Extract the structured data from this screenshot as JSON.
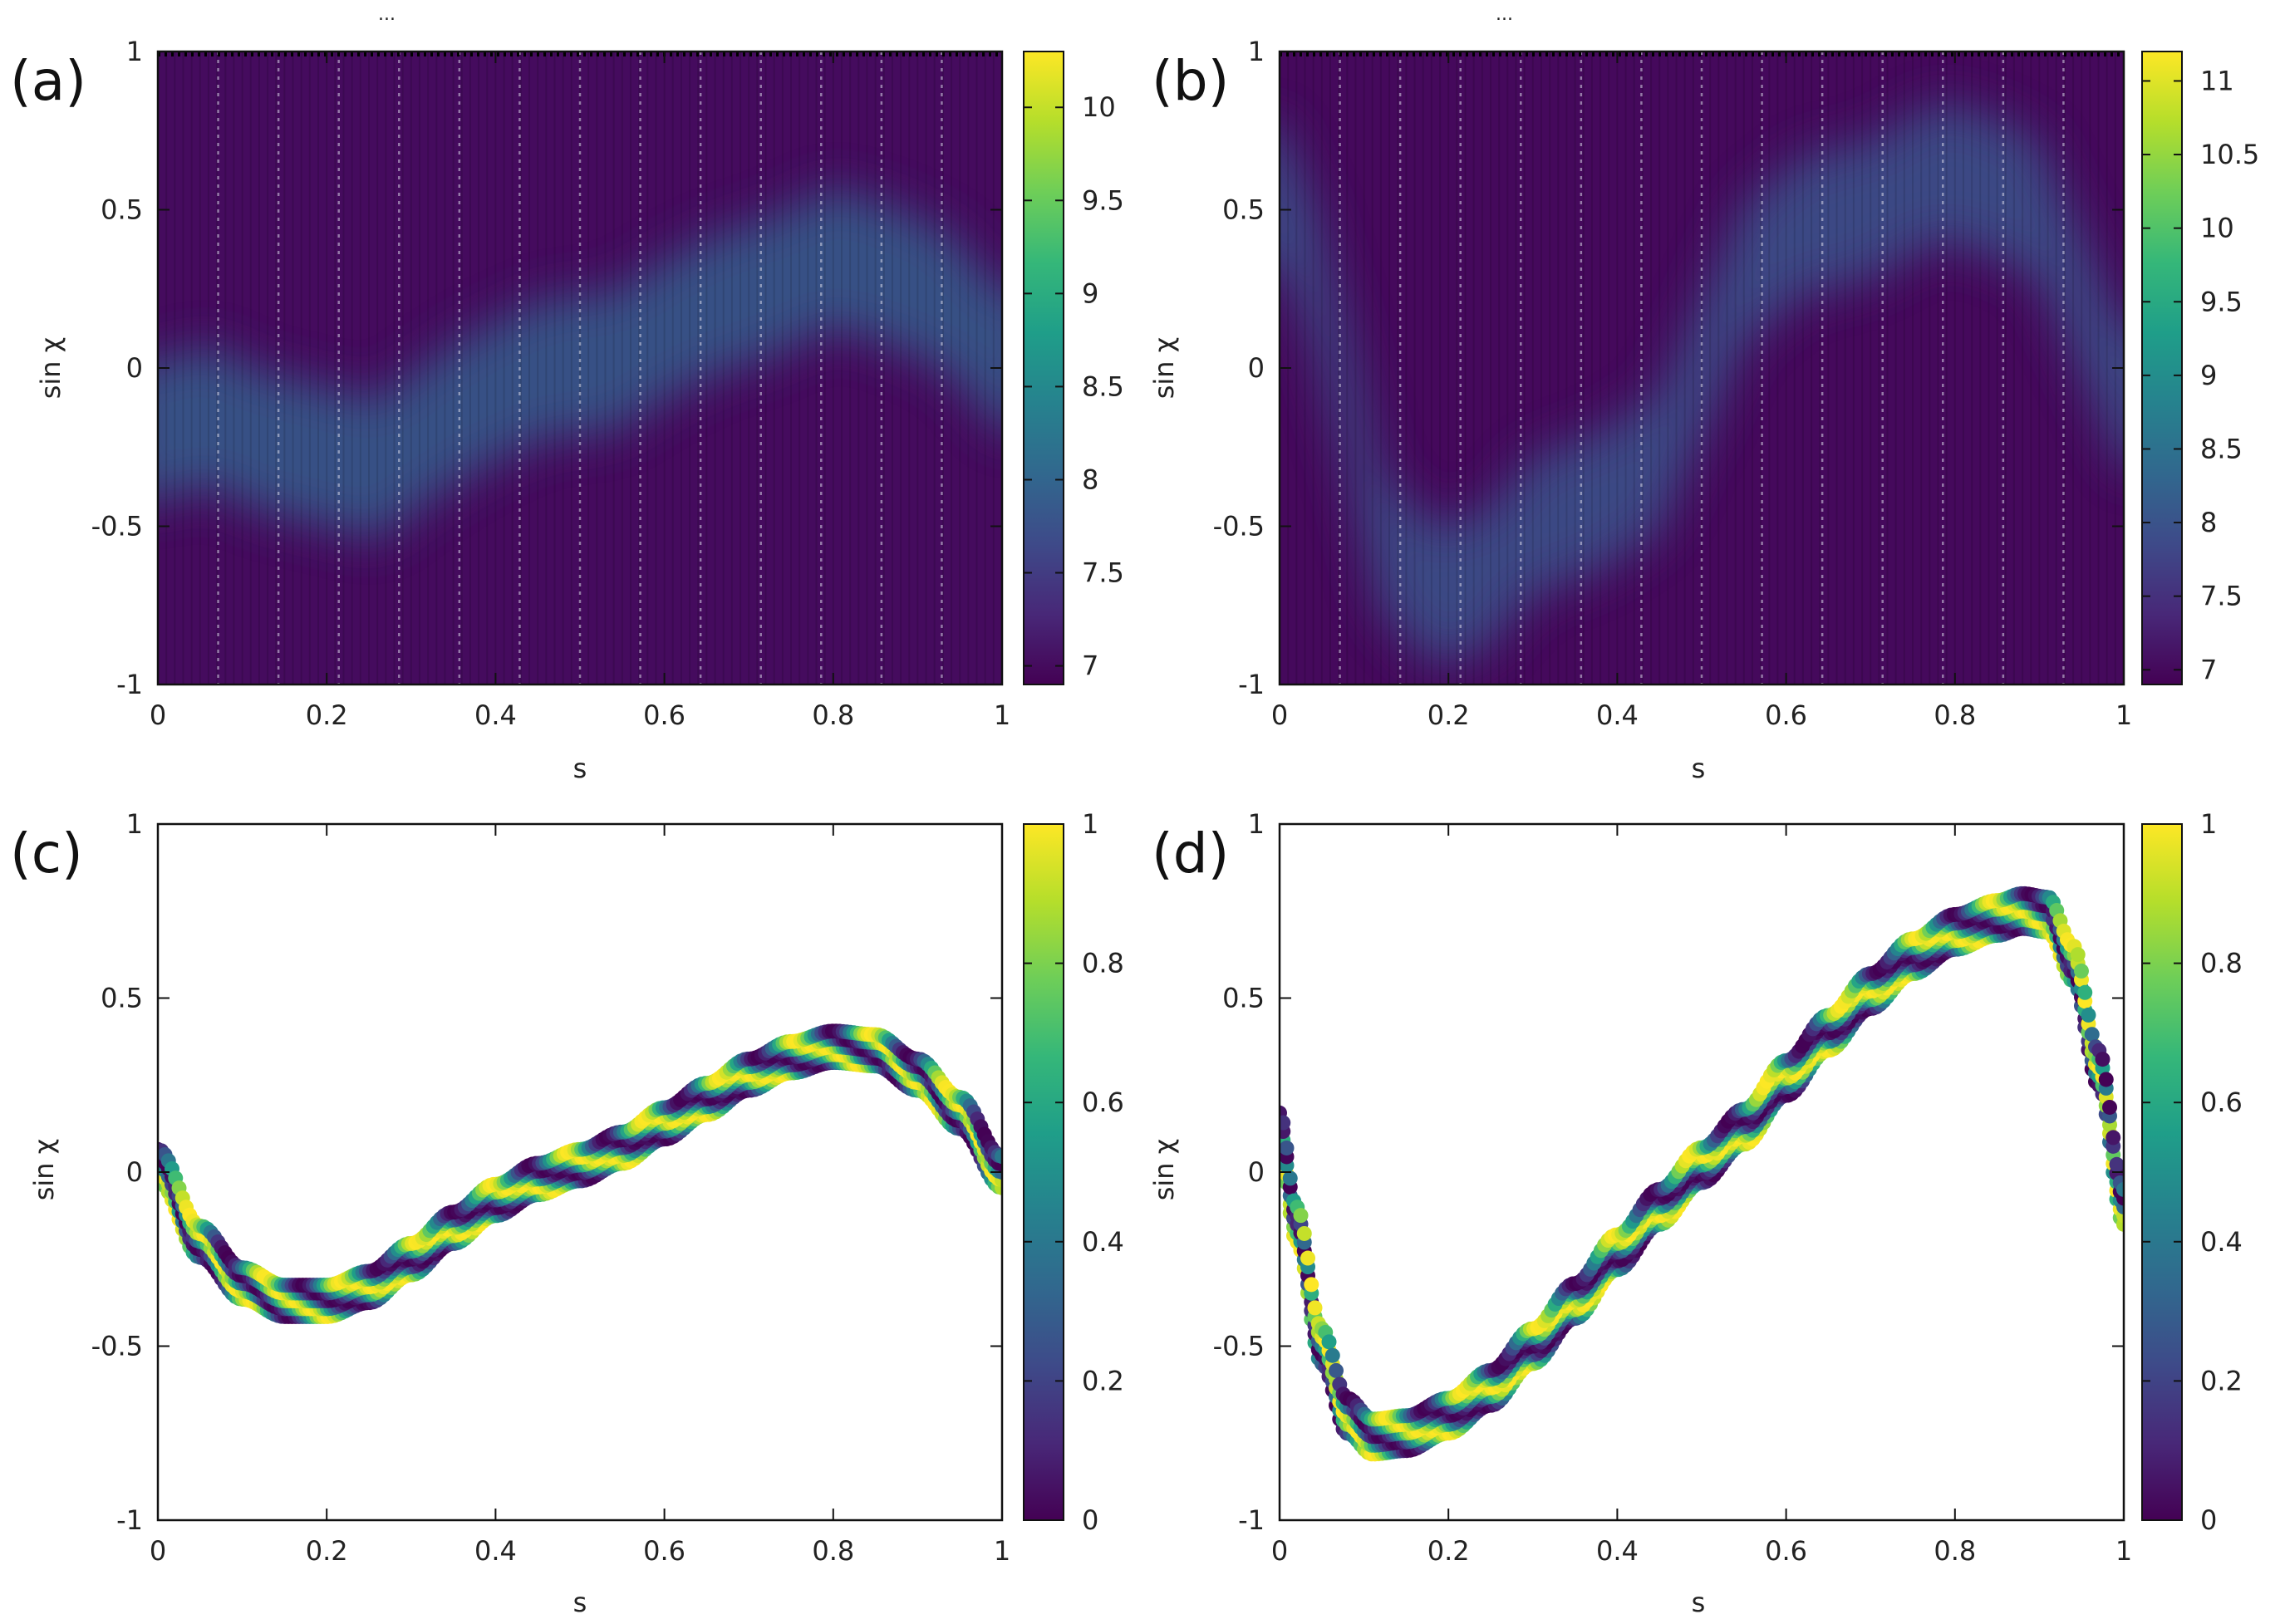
{
  "colormap": [
    "#440154",
    "#482878",
    "#3e4a89",
    "#31688e",
    "#26828e",
    "#1f9e89",
    "#35b779",
    "#6ece58",
    "#b5de2b",
    "#fde725"
  ],
  "chart_data": [
    {
      "id": "a",
      "type": "heatmap",
      "panel_label": "(a)",
      "top_marker": "...",
      "xlabel": "s",
      "ylabel": "sin χ",
      "xlim": [
        0,
        1
      ],
      "ylim": [
        -1,
        1
      ],
      "xticks": [
        "0",
        "0.2",
        "0.4",
        "0.6",
        "0.8",
        "1"
      ],
      "yticks": [
        "-1",
        "-0.5",
        "0",
        "0.5",
        "1"
      ],
      "colorbar": {
        "min": 6.9,
        "max": 10.3,
        "ticks": [
          "7",
          "7.5",
          "8",
          "8.5",
          "9",
          "9.5",
          "10"
        ]
      },
      "background_value": 7.0,
      "band": [
        [
          0,
          -0.2
        ],
        [
          0.06,
          -0.15
        ],
        [
          0.12,
          -0.23
        ],
        [
          0.2,
          -0.28
        ],
        [
          0.26,
          -0.32
        ],
        [
          0.32,
          -0.2
        ],
        [
          0.38,
          -0.1
        ],
        [
          0.46,
          0.0
        ],
        [
          0.54,
          0.02
        ],
        [
          0.6,
          0.12
        ],
        [
          0.66,
          0.2
        ],
        [
          0.73,
          0.26
        ],
        [
          0.8,
          0.35
        ],
        [
          0.88,
          0.28
        ],
        [
          0.94,
          0.2
        ],
        [
          1.0,
          0.02
        ]
      ],
      "band_value": 7.9
    },
    {
      "id": "b",
      "type": "heatmap",
      "panel_label": "(b)",
      "top_marker": "...",
      "xlabel": "s",
      "ylabel": "sin χ",
      "xlim": [
        0,
        1
      ],
      "ylim": [
        -1,
        1
      ],
      "xticks": [
        "0",
        "0.2",
        "0.4",
        "0.6",
        "0.8",
        "1"
      ],
      "yticks": [
        "-1",
        "-0.5",
        "0",
        "0.5",
        "1"
      ],
      "colorbar": {
        "min": 6.9,
        "max": 11.2,
        "ticks": [
          "7",
          "7.5",
          "8",
          "8.5",
          "9",
          "9.5",
          "10",
          "10.5",
          "11"
        ]
      },
      "background_value": 7.0,
      "band": [
        [
          0,
          0.55
        ],
        [
          0.04,
          0.3
        ],
        [
          0.08,
          -0.1
        ],
        [
          0.12,
          -0.55
        ],
        [
          0.18,
          -0.72
        ],
        [
          0.24,
          -0.68
        ],
        [
          0.3,
          -0.5
        ],
        [
          0.38,
          -0.42
        ],
        [
          0.45,
          -0.3
        ],
        [
          0.5,
          0.0
        ],
        [
          0.55,
          0.3
        ],
        [
          0.62,
          0.45
        ],
        [
          0.7,
          0.5
        ],
        [
          0.78,
          0.62
        ],
        [
          0.84,
          0.58
        ],
        [
          0.9,
          0.5
        ],
        [
          0.95,
          0.2
        ],
        [
          1.0,
          -0.1
        ]
      ],
      "band_value": 8.0
    },
    {
      "id": "c",
      "type": "scatter",
      "panel_label": "(c)",
      "xlabel": "s",
      "ylabel": "sin χ",
      "xlim": [
        0,
        1
      ],
      "ylim": [
        -1,
        1
      ],
      "xticks": [
        "0",
        "0.2",
        "0.4",
        "0.6",
        "0.8",
        "1"
      ],
      "yticks": [
        "-1",
        "-0.5",
        "0",
        "0.5",
        "1"
      ],
      "colorbar": {
        "min": 0,
        "max": 1,
        "ticks": [
          "0",
          "0.2",
          "0.4",
          "0.6",
          "0.8",
          "1"
        ]
      },
      "curve": [
        [
          0,
          0.02
        ],
        [
          0.05,
          -0.2
        ],
        [
          0.1,
          -0.32
        ],
        [
          0.15,
          -0.37
        ],
        [
          0.2,
          -0.37
        ],
        [
          0.25,
          -0.33
        ],
        [
          0.3,
          -0.25
        ],
        [
          0.35,
          -0.16
        ],
        [
          0.4,
          -0.08
        ],
        [
          0.45,
          -0.02
        ],
        [
          0.5,
          0.02
        ],
        [
          0.55,
          0.07
        ],
        [
          0.6,
          0.14
        ],
        [
          0.65,
          0.21
        ],
        [
          0.7,
          0.28
        ],
        [
          0.75,
          0.33
        ],
        [
          0.8,
          0.36
        ],
        [
          0.85,
          0.35
        ],
        [
          0.9,
          0.28
        ],
        [
          0.95,
          0.17
        ],
        [
          1.0,
          0.0
        ]
      ],
      "band_halfwidth": 0.045,
      "strands": 5
    },
    {
      "id": "d",
      "type": "scatter",
      "panel_label": "(d)",
      "xlabel": "s",
      "ylabel": "sin χ",
      "xlim": [
        0,
        1
      ],
      "ylim": [
        -1,
        1
      ],
      "xticks": [
        "0",
        "0.2",
        "0.4",
        "0.6",
        "0.8",
        "1"
      ],
      "yticks": [
        "-1",
        "-0.5",
        "0",
        "0.5",
        "1"
      ],
      "colorbar": {
        "min": 0,
        "max": 1,
        "ticks": [
          "0",
          "0.2",
          "0.4",
          "0.6",
          "0.8",
          "1"
        ]
      },
      "curve": [
        [
          0,
          0.12
        ],
        [
          0.02,
          -0.15
        ],
        [
          0.05,
          -0.5
        ],
        [
          0.08,
          -0.7
        ],
        [
          0.11,
          -0.76
        ],
        [
          0.15,
          -0.75
        ],
        [
          0.2,
          -0.7
        ],
        [
          0.25,
          -0.62
        ],
        [
          0.3,
          -0.5
        ],
        [
          0.35,
          -0.37
        ],
        [
          0.4,
          -0.23
        ],
        [
          0.45,
          -0.1
        ],
        [
          0.5,
          0.02
        ],
        [
          0.55,
          0.13
        ],
        [
          0.6,
          0.27
        ],
        [
          0.65,
          0.4
        ],
        [
          0.7,
          0.52
        ],
        [
          0.75,
          0.62
        ],
        [
          0.8,
          0.69
        ],
        [
          0.85,
          0.73
        ],
        [
          0.88,
          0.75
        ],
        [
          0.91,
          0.74
        ],
        [
          0.94,
          0.6
        ],
        [
          0.97,
          0.3
        ],
        [
          1.0,
          -0.1
        ]
      ],
      "band_halfwidth": 0.05,
      "strands": 5
    }
  ]
}
